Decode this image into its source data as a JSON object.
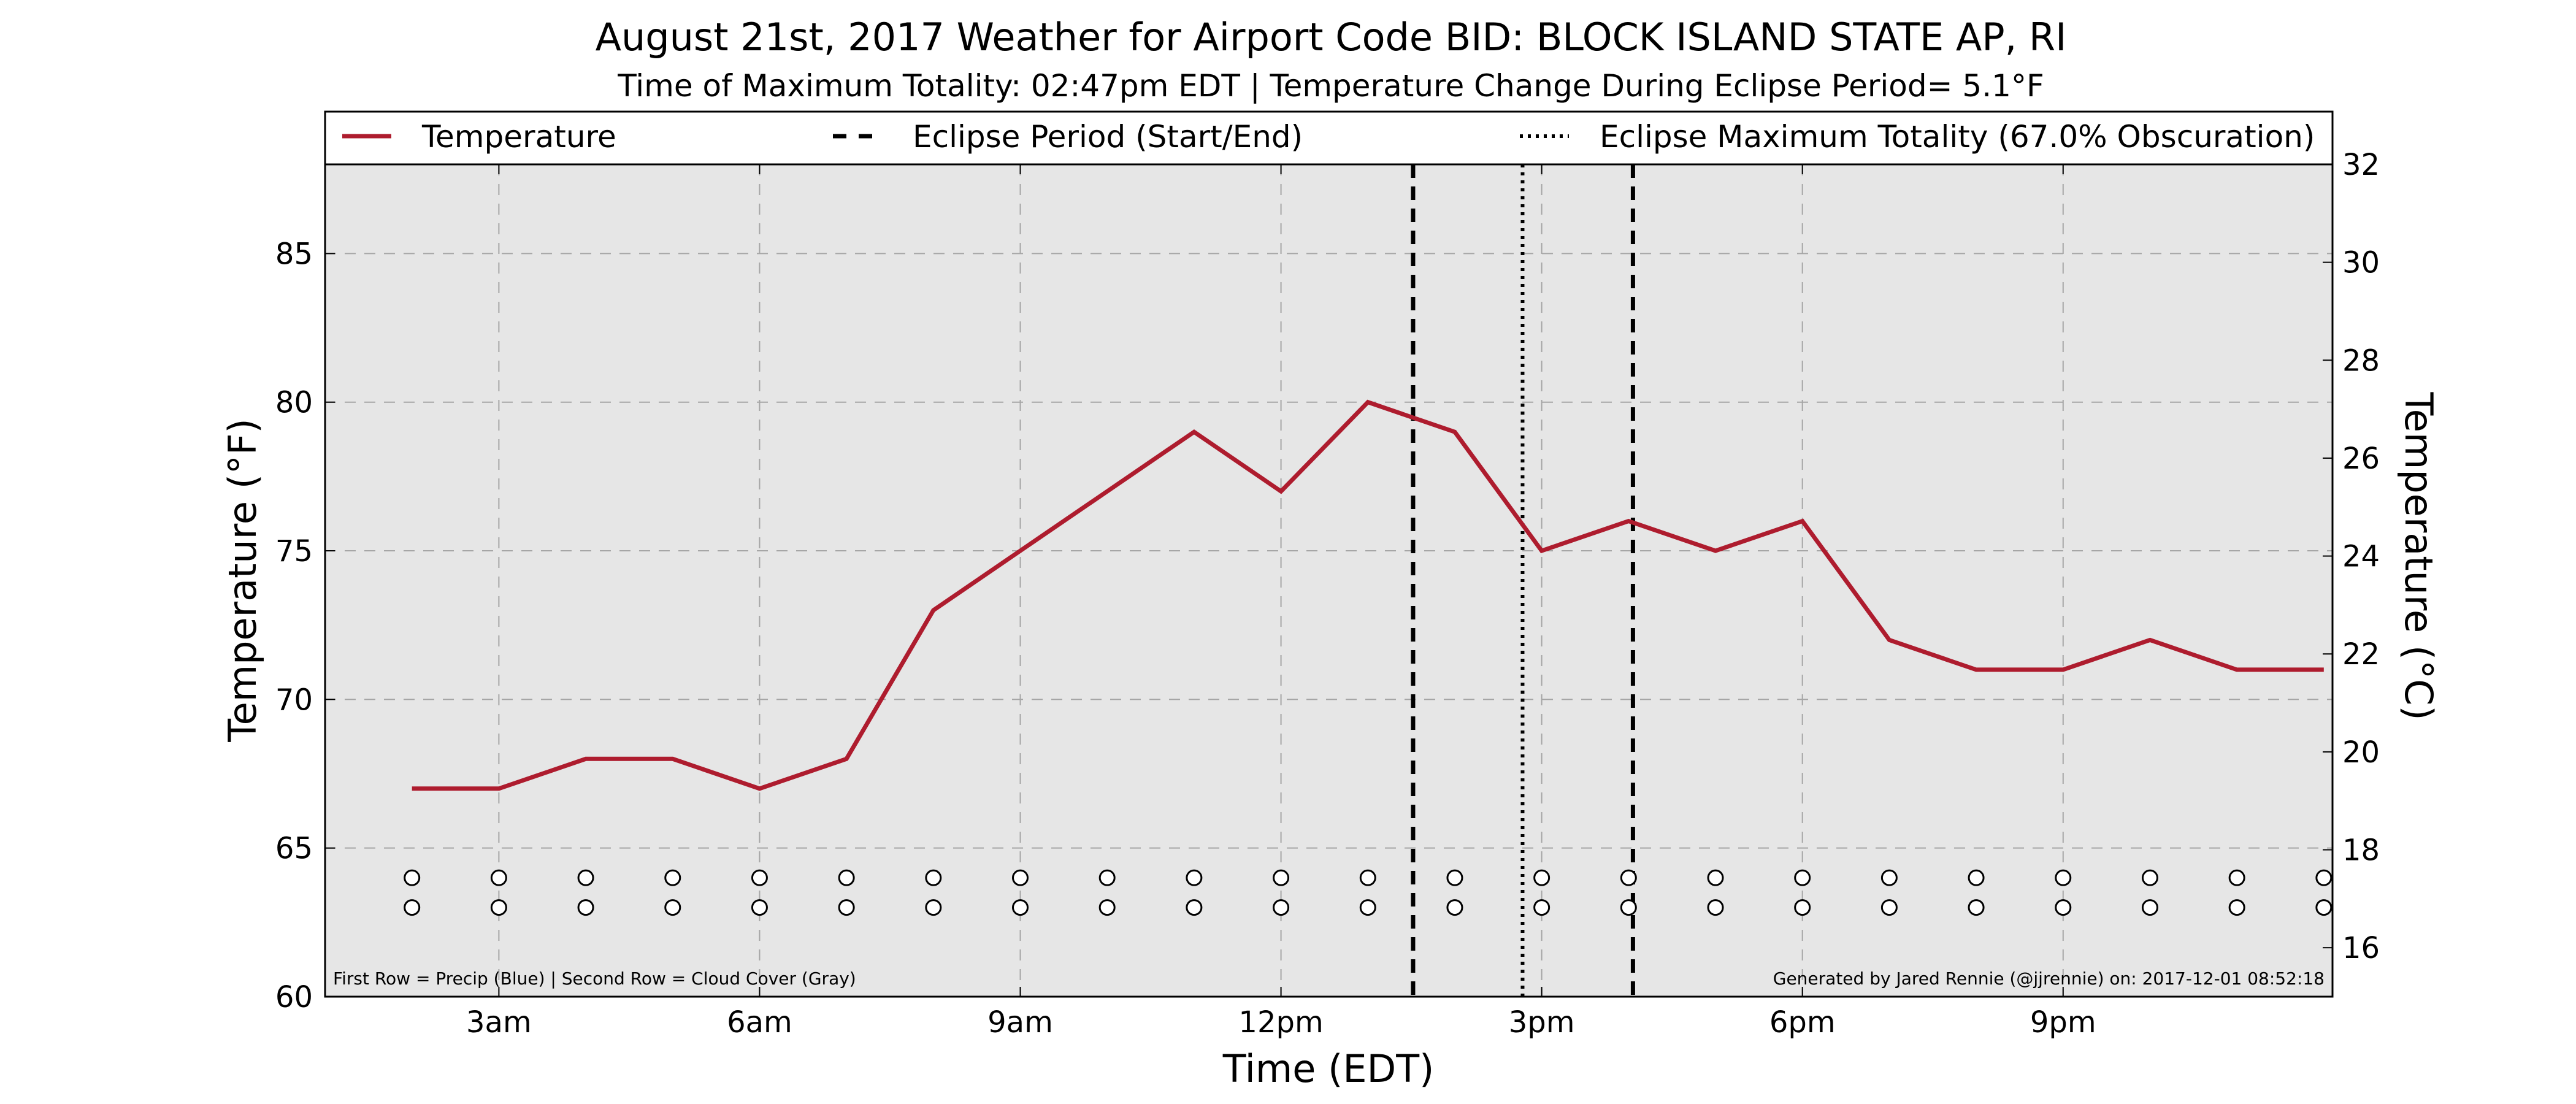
{
  "colors": {
    "temperature": "#ae1c2e",
    "plot_background": "#e6e6e6",
    "grid": "#a6a6a6",
    "eclipse_lines": "#000000"
  },
  "chart_data": {
    "type": "line",
    "title": "August 21st, 2017 Weather for Airport Code BID: BLOCK ISLAND STATE AP, RI",
    "subtitle": "Time of Maximum Totality: 02:47pm EDT | Temperature Change During Eclipse Period= 5.1°F",
    "xlabel": "Time (EDT)",
    "ylabel": "Temperature (°F)",
    "ylabel_right": "Temperature (°C)",
    "xlim": [
      1.0,
      24.1
    ],
    "ylim": [
      60,
      88
    ],
    "ylim_right": [
      15.0,
      32.0
    ],
    "grid": true,
    "legend_placement": "top, above plot",
    "x_ticks": [
      3,
      6,
      9,
      12,
      15,
      18,
      21
    ],
    "x_tick_labels": [
      "3am",
      "6am",
      "9am",
      "12pm",
      "3pm",
      "6pm",
      "9pm"
    ],
    "y_ticks": [
      60,
      65,
      70,
      75,
      80,
      85
    ],
    "y_tick_labels": [
      "60",
      "65",
      "70",
      "75",
      "80",
      "85"
    ],
    "y_ticks_right": [
      16,
      18,
      20,
      22,
      24,
      26,
      28,
      30,
      32
    ],
    "y_tick_labels_right": [
      "16",
      "18",
      "20",
      "22",
      "24",
      "26",
      "28",
      "30",
      "32"
    ],
    "series": [
      {
        "name": "Temperature",
        "x": [
          2,
          3,
          4,
          5,
          6,
          7,
          8,
          9,
          10,
          11,
          12,
          13,
          14,
          15,
          16,
          17,
          18,
          19,
          20,
          21,
          22,
          23,
          24
        ],
        "values": [
          67,
          67,
          68,
          68,
          67,
          68,
          73,
          75,
          77,
          79,
          77,
          80,
          79,
          75,
          76,
          75,
          76,
          72,
          71,
          71,
          72,
          71,
          71
        ]
      }
    ],
    "legend": [
      {
        "label": "Temperature",
        "style": "solid"
      },
      {
        "label": "Eclipse Period (Start/End)",
        "style": "dashed"
      },
      {
        "label": "Eclipse Maximum Totality (67.0% Obscuration)",
        "style": "dotted"
      }
    ],
    "eclipse": {
      "start_hour": 13.52,
      "end_hour": 16.05,
      "max_totality_hour": 14.78
    },
    "indicator_rows": {
      "hours": [
        2,
        3,
        4,
        5,
        6,
        7,
        8,
        9,
        10,
        11,
        12,
        13,
        14,
        15,
        16,
        17,
        18,
        19,
        20,
        21,
        22,
        23,
        24
      ],
      "precip_y": 64,
      "cloud_y": 63
    },
    "notes": {
      "left": "First Row = Precip (Blue) | Second Row = Cloud Cover (Gray)",
      "right": "Generated by Jared Rennie (@jjrennie) on: 2017-12-01 08:52:18"
    }
  }
}
